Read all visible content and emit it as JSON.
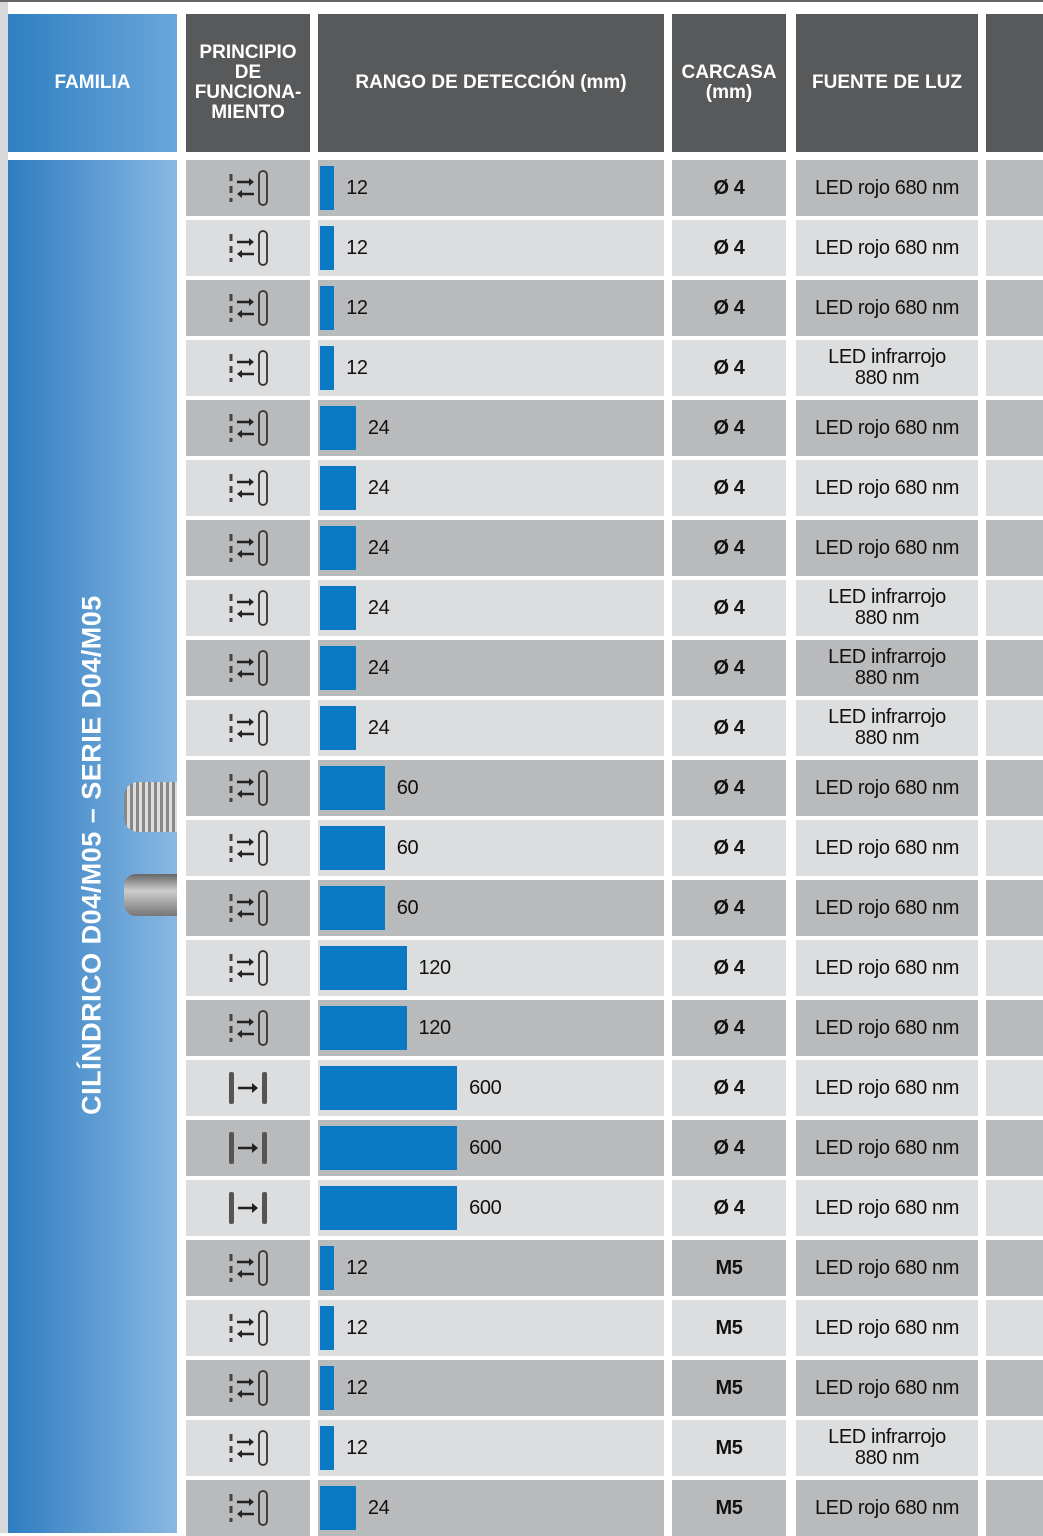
{
  "header": {
    "family": "FAMILIA",
    "principle": "PRINCIPIO\nDE\nFUNCIONA-\nMIENTO",
    "range": "RANGO DE DETECCIÓN (mm)",
    "housing": "CARCASA\n(mm)",
    "light": "FUENTE DE LUZ"
  },
  "family": "CILÍNDRICO D04/M05 – SERIE D04/M05",
  "rows": [
    {
      "range": 12,
      "housing": "Ø 4",
      "light": "LED rojo 680 nm"
    },
    {
      "range": 12,
      "housing": "Ø 4",
      "light": "LED rojo 680 nm"
    },
    {
      "range": 12,
      "housing": "Ø 4",
      "light": "LED rojo 680 nm"
    },
    {
      "range": 12,
      "housing": "Ø 4",
      "light": "LED infrarrojo 880 nm"
    },
    {
      "range": 24,
      "housing": "Ø 4",
      "light": "LED rojo 680 nm"
    },
    {
      "range": 24,
      "housing": "Ø 4",
      "light": "LED rojo 680 nm"
    },
    {
      "range": 24,
      "housing": "Ø 4",
      "light": "LED rojo 680 nm"
    },
    {
      "range": 24,
      "housing": "Ø 4",
      "light": "LED infrarrojo 880 nm"
    },
    {
      "range": 24,
      "housing": "Ø 4",
      "light": "LED infrarrojo 880 nm"
    },
    {
      "range": 24,
      "housing": "Ø 4",
      "light": "LED infrarrojo 880 nm"
    },
    {
      "range": 60,
      "housing": "Ø 4",
      "light": "LED rojo 680 nm"
    },
    {
      "range": 60,
      "housing": "Ø 4",
      "light": "LED rojo 680 nm"
    },
    {
      "range": 60,
      "housing": "Ø 4",
      "light": "LED rojo 680 nm"
    },
    {
      "range": 120,
      "housing": "Ø 4",
      "light": "LED rojo 680 nm"
    },
    {
      "range": 120,
      "housing": "Ø 4",
      "light": "LED rojo 680 nm"
    },
    {
      "range": 600,
      "housing": "Ø 4",
      "light": "LED rojo 680 nm"
    },
    {
      "range": 600,
      "housing": "Ø 4",
      "light": "LED rojo 680 nm"
    },
    {
      "range": 600,
      "housing": "Ø 4",
      "light": "LED rojo 680 nm"
    },
    {
      "range": 12,
      "housing": "M5",
      "light": "LED rojo 680 nm"
    },
    {
      "range": 12,
      "housing": "M5",
      "light": "LED rojo 680 nm"
    },
    {
      "range": 12,
      "housing": "M5",
      "light": "LED rojo 680 nm"
    },
    {
      "range": 12,
      "housing": "M5",
      "light": "LED infrarrojo 880 nm"
    },
    {
      "range": 24,
      "housing": "M5",
      "light": "LED rojo 680 nm"
    }
  ]
}
